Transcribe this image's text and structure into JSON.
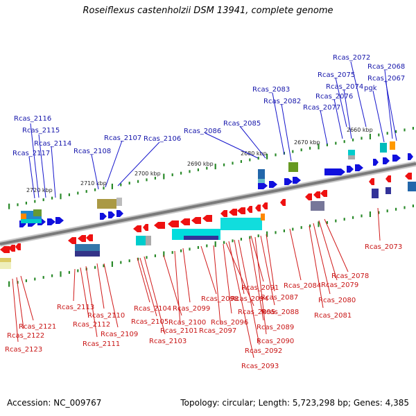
{
  "title": "Roseiflexus castenholzii DSM 13941, complete genome",
  "footer": {
    "accession": "Accession: NC_009767",
    "topology": "Topology: circular; Length: 5,723,298 bp; Genes: 4,385"
  },
  "colors": {
    "plus_gene": "#1010dd",
    "minus_gene": "#ee1111",
    "plus_label": "#1515aa",
    "minus_label": "#c81414",
    "backbone": "#777777",
    "tick": "#2a8a2a"
  },
  "ruler_labels": [
    "2720 kbp",
    "2710 kbp",
    "2700 kbp",
    "2690 kbp",
    "2680 kbp",
    "2670 kbp",
    "2660 kbp"
  ],
  "plus_genes": [
    "Rcas_2072",
    "Rcas_2068",
    "Rcas_2075",
    "Rcas_2067",
    "Rcas_2074",
    "pgk",
    "Rcas_2083",
    "Rcas_2076",
    "Rcas_2082",
    "Rcas_2077",
    "Rcas_2116",
    "Rcas_2085",
    "Rcas_2115",
    "Rcas_2107",
    "Rcas_2106",
    "Rcas_2086",
    "Rcas_2114",
    "Rcas_2117",
    "Rcas_2108"
  ],
  "minus_genes": [
    "Rcas_2073",
    "Rcas_2078",
    "Rcas_2084",
    "Rcas_2079",
    "Rcas_2091",
    "Rcas_2098",
    "Rcas_2094",
    "Rcas_2087",
    "Rcas_2080",
    "Rcas_2113",
    "Rcas_2104",
    "Rcas_2099",
    "Rcas_2095",
    "Rcas_2088",
    "Rcas_2081",
    "Rcas_2110",
    "Rcas_2100",
    "Rcas_2096",
    "Rcas_2121",
    "Rcas_2112",
    "Rcas_2105",
    "Rcas_2089",
    "Rcas_2101",
    "Rcas_2097",
    "Rcas_2122",
    "Rcas_2109",
    "Rcas_2103",
    "Rcas_2090",
    "Rcas_2111",
    "Rcas_2123",
    "Rcas_2092",
    "Rcas_2093"
  ]
}
